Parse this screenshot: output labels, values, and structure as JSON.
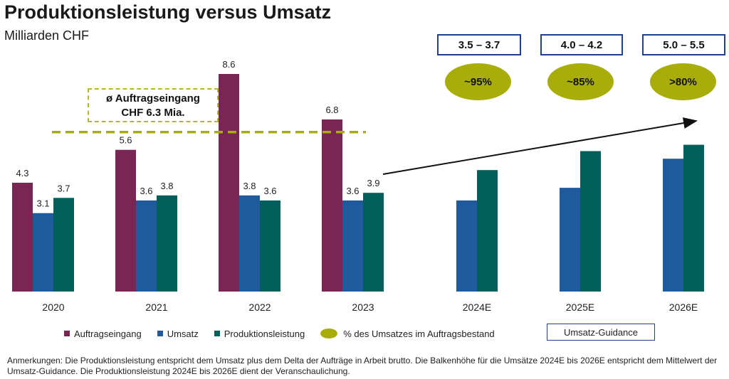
{
  "title": "Produktionsleistung versus Umsatz",
  "subtitle": "Milliarden CHF",
  "colors": {
    "auftragseingang": "#7a2654",
    "umsatz": "#1f5a9c",
    "produktionsleistung": "#005f5a",
    "olive": "#a9ad0c",
    "guidance_border": "#1f3f8f"
  },
  "callout": {
    "line1": "ø Auftragseingang",
    "line2": "CHF 6.3 Mia."
  },
  "guidance": [
    {
      "range": "3.5 – 3.7",
      "pct": "~95%"
    },
    {
      "range": "4.0 – 4.2",
      "pct": "~85%"
    },
    {
      "range": "5.0 – 5.5",
      "pct": ">80%"
    }
  ],
  "legend": {
    "auftragseingang": "Auftragseingang",
    "umsatz": "Umsatz",
    "produktionsleistung": "Produktionsleistung",
    "pct": "% des Umsatzes im Auftragsbestand",
    "guidance": "Umsatz-Guidance"
  },
  "note": "Anmerkungen: Die Produktionsleistung entspricht dem Umsatz plus dem Delta der Aufträge in Arbeit brutto. Die Balkenhöhe für die Umsätze 2024E bis 2026E entspricht dem Mittelwert der Umsatz-Guidance. Die Produktionsleistung 2024E bis 2026E dient der Veranschaulichung.",
  "chart_data": {
    "type": "bar",
    "categories": [
      "2020",
      "2021",
      "2022",
      "2023",
      "2024E",
      "2025E",
      "2026E"
    ],
    "series": [
      {
        "name": "Auftragseingang",
        "values": [
          4.3,
          5.6,
          8.6,
          6.8,
          null,
          null,
          null
        ],
        "labels": [
          "4.3",
          "5.6",
          "8.6",
          "6.8",
          "",
          "",
          ""
        ]
      },
      {
        "name": "Umsatz",
        "values": [
          3.1,
          3.6,
          3.8,
          3.6,
          3.6,
          4.1,
          5.25
        ],
        "labels": [
          "3.1",
          "3.6",
          "3.8",
          "3.6",
          "",
          "",
          ""
        ]
      },
      {
        "name": "Produktionsleistung",
        "values": [
          3.7,
          3.8,
          3.6,
          3.9,
          4.8,
          5.55,
          5.8
        ],
        "labels": [
          "3.7",
          "3.8",
          "3.6",
          "3.9",
          "",
          "",
          ""
        ]
      }
    ],
    "reference_line": {
      "value": 6.3
    },
    "ylim": [
      0,
      8.6
    ]
  }
}
